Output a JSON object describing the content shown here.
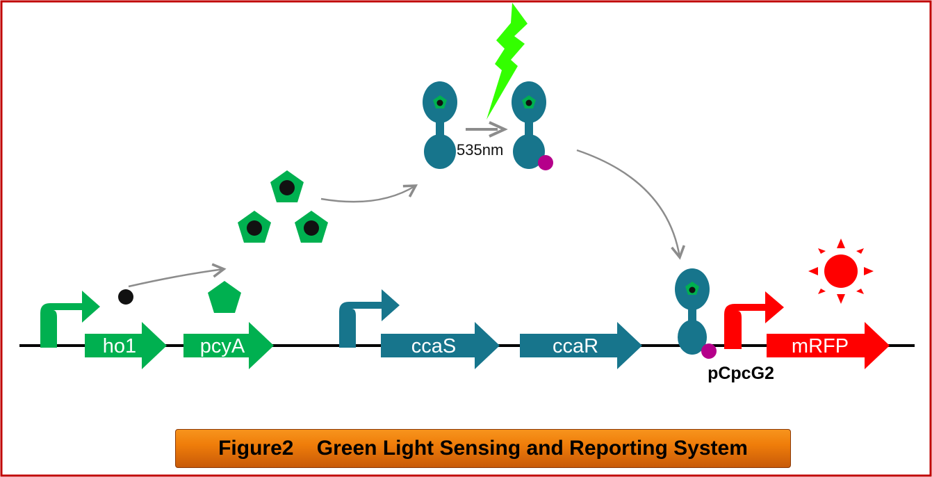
{
  "colors": {
    "frame": "#c00000",
    "green": "#00b050",
    "teal": "#17758c",
    "red": "#ff0000",
    "magenta": "#b5008a",
    "bolt": "#33ff00",
    "arrow_gray": "#8c8c8c"
  },
  "genes": {
    "ho1": "ho1",
    "pcyA": "pcyA",
    "ccaS": "ccaS",
    "ccaR": "ccaR",
    "mRFP": "mRFP"
  },
  "promoter_label": "pCpcG2",
  "wavelength_label": "535nm",
  "caption": {
    "figure": "Figure2",
    "title": "Green Light Sensing and Reporting System"
  },
  "icons": [
    "light-bolt-icon",
    "sun-icon",
    "promoter-arrow-icon",
    "chromophore-icon",
    "sensor-protein-icon"
  ]
}
